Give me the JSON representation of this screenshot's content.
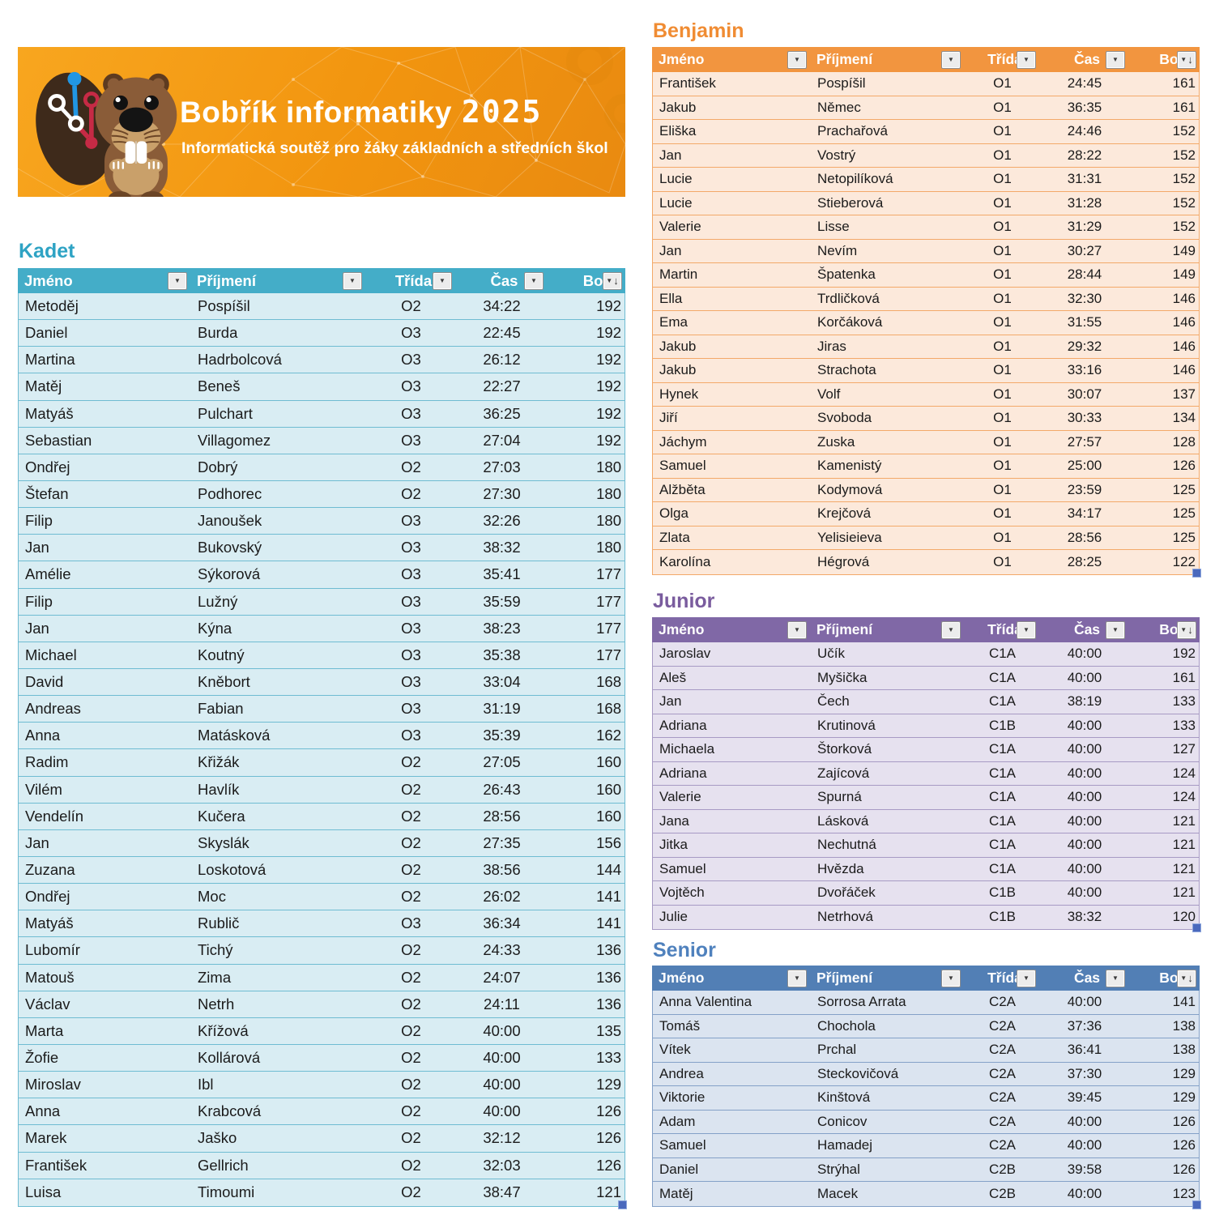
{
  "banner": {
    "title": "Bobřík informatiky",
    "year": "2025",
    "subtitle": "Informatická soutěž pro žáky základních a středních škol",
    "logo": "beaver-mascot-with-git-branch-tail",
    "background_color": "#F2950F"
  },
  "columns": [
    "Jméno",
    "Příjmení",
    "Třída",
    "Čas",
    "Body"
  ],
  "icons": {
    "filter": "▼",
    "sort_descending": "↓"
  },
  "sorted_column": "Body",
  "tables": [
    {
      "title": "Kadet",
      "colors": {
        "title": "#2EA3C4",
        "header": "#44ADC8",
        "row": "#D9EDF3",
        "separator": "#6FBCD2"
      },
      "rows": [
        [
          "Metoděj",
          "Pospíšil",
          "O2",
          "34:22",
          "192"
        ],
        [
          "Daniel",
          "Burda",
          "O3",
          "22:45",
          "192"
        ],
        [
          "Martina",
          "Hadrbolcová",
          "O3",
          "26:12",
          "192"
        ],
        [
          "Matěj",
          "Beneš",
          "O3",
          "22:27",
          "192"
        ],
        [
          "Matyáš",
          "Pulchart",
          "O3",
          "36:25",
          "192"
        ],
        [
          "Sebastian",
          "Villagomez",
          "O3",
          "27:04",
          "192"
        ],
        [
          "Ondřej",
          "Dobrý",
          "O2",
          "27:03",
          "180"
        ],
        [
          "Štefan",
          "Podhorec",
          "O2",
          "27:30",
          "180"
        ],
        [
          "Filip",
          "Janoušek",
          "O3",
          "32:26",
          "180"
        ],
        [
          "Jan",
          "Bukovský",
          "O3",
          "38:32",
          "180"
        ],
        [
          "Amélie",
          "Sýkorová",
          "O3",
          "35:41",
          "177"
        ],
        [
          "Filip",
          "Lužný",
          "O3",
          "35:59",
          "177"
        ],
        [
          "Jan",
          "Kýna",
          "O3",
          "38:23",
          "177"
        ],
        [
          "Michael",
          "Koutný",
          "O3",
          "35:38",
          "177"
        ],
        [
          "David",
          "Kněbort",
          "O3",
          "33:04",
          "168"
        ],
        [
          "Andreas",
          "Fabian",
          "O3",
          "31:19",
          "168"
        ],
        [
          "Anna",
          "Matásková",
          "O3",
          "35:39",
          "162"
        ],
        [
          "Radim",
          "Křižák",
          "O2",
          "27:05",
          "160"
        ],
        [
          "Vilém",
          "Havlík",
          "O2",
          "26:43",
          "160"
        ],
        [
          "Vendelín",
          "Kučera",
          "O2",
          "28:56",
          "160"
        ],
        [
          "Jan",
          "Skyslák",
          "O2",
          "27:35",
          "156"
        ],
        [
          "Zuzana",
          "Loskotová",
          "O2",
          "38:56",
          "144"
        ],
        [
          "Ondřej",
          "Moc",
          "O2",
          "26:02",
          "141"
        ],
        [
          "Matyáš",
          "Rublič",
          "O3",
          "36:34",
          "141"
        ],
        [
          "Lubomír",
          "Tichý",
          "O2",
          "24:33",
          "136"
        ],
        [
          "Matouš",
          "Zima",
          "O2",
          "24:07",
          "136"
        ],
        [
          "Václav",
          "Netrh",
          "O2",
          "24:11",
          "136"
        ],
        [
          "Marta",
          "Křížová",
          "O2",
          "40:00",
          "135"
        ],
        [
          "Žofie",
          "Kollárová",
          "O2",
          "40:00",
          "133"
        ],
        [
          "Miroslav",
          "Ibl",
          "O2",
          "40:00",
          "129"
        ],
        [
          "Anna",
          "Krabcová",
          "O2",
          "40:00",
          "126"
        ],
        [
          "Marek",
          "Jaško",
          "O2",
          "32:12",
          "126"
        ],
        [
          "František",
          "Gellrich",
          "O2",
          "32:03",
          "126"
        ],
        [
          "Luisa",
          "Timoumi",
          "O2",
          "38:47",
          "121"
        ]
      ]
    },
    {
      "title": "Benjamin",
      "colors": {
        "title": "#F08C33",
        "header": "#F2953F",
        "row": "#FCE9DB",
        "separator": "#F3A969"
      },
      "rows": [
        [
          "František",
          "Pospíšil",
          "O1",
          "24:45",
          "161"
        ],
        [
          "Jakub",
          "Němec",
          "O1",
          "36:35",
          "161"
        ],
        [
          "Eliška",
          "Prachařová",
          "O1",
          "24:46",
          "152"
        ],
        [
          "Jan",
          "Vostrý",
          "O1",
          "28:22",
          "152"
        ],
        [
          "Lucie",
          "Netopilíková",
          "O1",
          "31:31",
          "152"
        ],
        [
          "Lucie",
          "Stieberová",
          "O1",
          "31:28",
          "152"
        ],
        [
          "Valerie",
          "Lisse",
          "O1",
          "31:29",
          "152"
        ],
        [
          "Jan",
          "Nevím",
          "O1",
          "30:27",
          "149"
        ],
        [
          "Martin",
          "Špatenka",
          "O1",
          "28:44",
          "149"
        ],
        [
          "Ella",
          "Trdličková",
          "O1",
          "32:30",
          "146"
        ],
        [
          "Ema",
          "Korčáková",
          "O1",
          "31:55",
          "146"
        ],
        [
          "Jakub",
          "Jiras",
          "O1",
          "29:32",
          "146"
        ],
        [
          "Jakub",
          "Strachota",
          "O1",
          "33:16",
          "146"
        ],
        [
          "Hynek",
          "Volf",
          "O1",
          "30:07",
          "137"
        ],
        [
          "Jiří",
          "Svoboda",
          "O1",
          "30:33",
          "134"
        ],
        [
          "Jáchym",
          "Zuska",
          "O1",
          "27:57",
          "128"
        ],
        [
          "Samuel",
          "Kamenistý",
          "O1",
          "25:00",
          "126"
        ],
        [
          "Alžběta",
          "Kodymová",
          "O1",
          "23:59",
          "125"
        ],
        [
          "Olga",
          "Krejčová",
          "O1",
          "34:17",
          "125"
        ],
        [
          "Zlata",
          "Yelisieieva",
          "O1",
          "28:56",
          "125"
        ],
        [
          "Karolína",
          "Hégrová",
          "O1",
          "28:25",
          "122"
        ]
      ]
    },
    {
      "title": "Junior",
      "colors": {
        "title": "#7A5C9E",
        "header": "#8068A6",
        "row": "#E6E1EF",
        "separator": "#A79ac4"
      },
      "rows": [
        [
          "Jaroslav",
          "Učík",
          "C1A",
          "40:00",
          "192"
        ],
        [
          "Aleš",
          "Myšička",
          "C1A",
          "40:00",
          "161"
        ],
        [
          "Jan",
          "Čech",
          "C1A",
          "38:19",
          "133"
        ],
        [
          "Adriana",
          "Krutinová",
          "C1B",
          "40:00",
          "133"
        ],
        [
          "Michaela",
          "Štorková",
          "C1A",
          "40:00",
          "127"
        ],
        [
          "Adriana",
          "Zajícová",
          "C1A",
          "40:00",
          "124"
        ],
        [
          "Valerie",
          "Spurná",
          "C1A",
          "40:00",
          "124"
        ],
        [
          "Jana",
          "Lásková",
          "C1A",
          "40:00",
          "121"
        ],
        [
          "Jitka",
          "Nechutná",
          "C1A",
          "40:00",
          "121"
        ],
        [
          "Samuel",
          "Hvězda",
          "C1A",
          "40:00",
          "121"
        ],
        [
          "Vojtěch",
          "Dvořáček",
          "C1B",
          "40:00",
          "121"
        ],
        [
          "Julie",
          "Netrhová",
          "C1B",
          "38:32",
          "120"
        ]
      ]
    },
    {
      "title": "Senior",
      "colors": {
        "title": "#4F81BD",
        "header": "#527FB5",
        "row": "#DBE4F0",
        "separator": "#84A1C8"
      },
      "rows": [
        [
          "Anna Valentina",
          "Sorrosa Arrata",
          "C2A",
          "40:00",
          "141"
        ],
        [
          "Tomáš",
          "Chochola",
          "C2A",
          "37:36",
          "138"
        ],
        [
          "Vítek",
          "Prchal",
          "C2A",
          "36:41",
          "138"
        ],
        [
          "Andrea",
          "Steckovičová",
          "C2A",
          "37:30",
          "129"
        ],
        [
          "Viktorie",
          "Kinštová",
          "C2A",
          "39:45",
          "129"
        ],
        [
          "Adam",
          "Conicov",
          "C2A",
          "40:00",
          "126"
        ],
        [
          "Samuel",
          "Hamadej",
          "C2A",
          "40:00",
          "126"
        ],
        [
          "Daniel",
          "Strýhal",
          "C2B",
          "39:58",
          "126"
        ],
        [
          "Matěj",
          "Macek",
          "C2B",
          "40:00",
          "123"
        ]
      ]
    }
  ]
}
